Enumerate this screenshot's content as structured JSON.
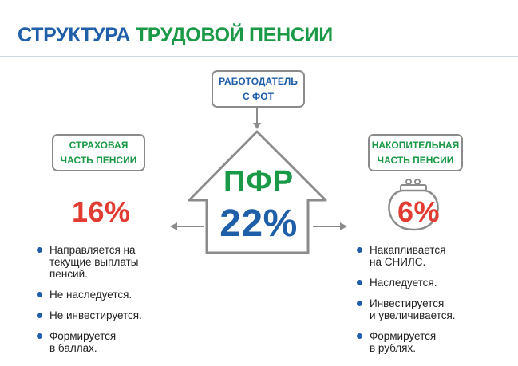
{
  "title": {
    "part1": "СТРУКТУРА",
    "part2": "ТРУДОВОЙ ПЕНСИИ"
  },
  "employer": {
    "line1": "РАБОТОДАТЕЛЬ",
    "line2": "С ФОТ"
  },
  "house": {
    "label": "ПФР",
    "value": "22%"
  },
  "insurance": {
    "line1": "СТРАХОВАЯ",
    "line2": "ЧАСТЬ ПЕНСИИ",
    "percent": "16%",
    "bullets": [
      "Направляется на\nтекущие выплаты\nпенсий.",
      "Не наследуется.",
      "Не инвестируется.",
      "Формируется\nв баллах."
    ]
  },
  "accumulation": {
    "line1": "НАКОПИТЕЛЬНАЯ",
    "line2": "ЧАСТЬ ПЕНСИИ",
    "percent": "6%",
    "bullets": [
      "Накапливается\nна СНИЛС.",
      "Наследуется.",
      "Инвестируется\nи увеличивается.",
      "Формируется\nв рублях."
    ]
  },
  "colors": {
    "blue": "#1f5ea8",
    "green": "#1a9a47",
    "red": "#e23b32",
    "gray": "#8b8b8b"
  },
  "icons": [
    "house-icon",
    "purse-icon",
    "arrow-down-icon",
    "arrow-left-icon",
    "arrow-right-icon"
  ]
}
